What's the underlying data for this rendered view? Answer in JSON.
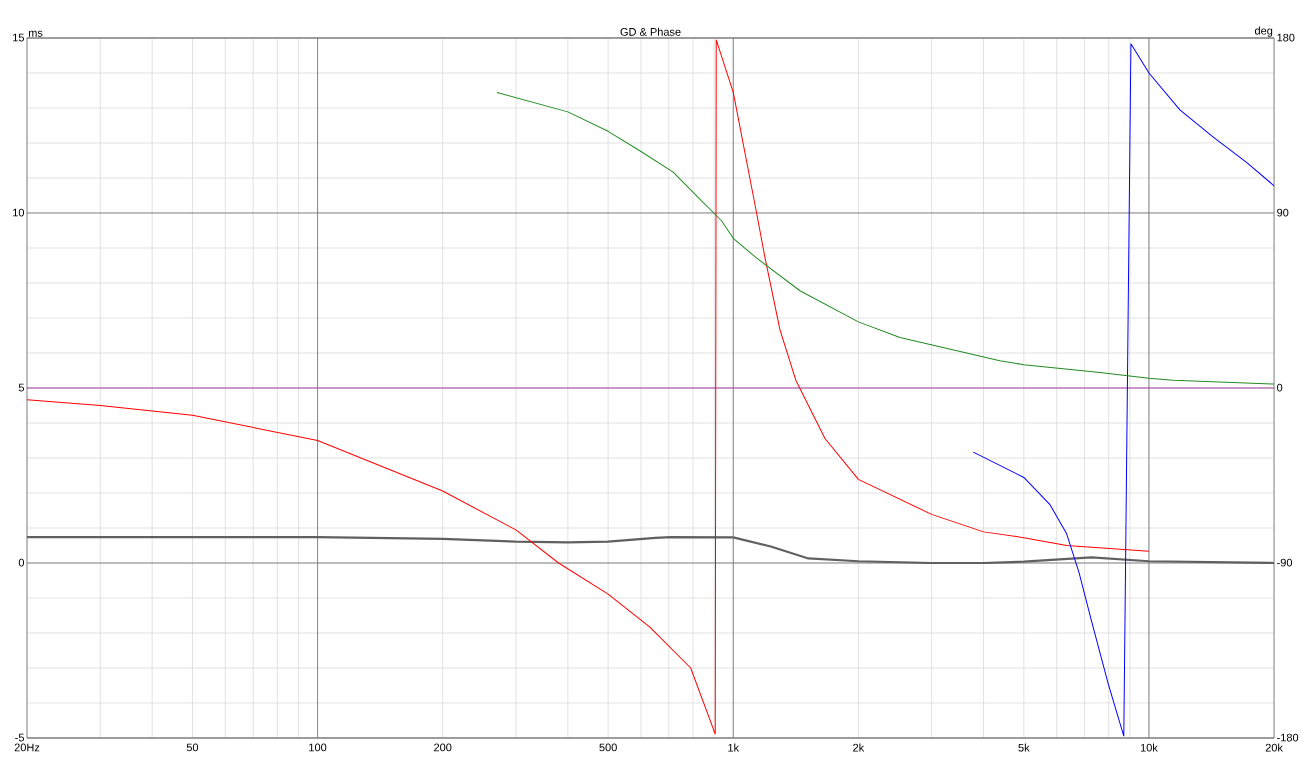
{
  "chart_data": {
    "type": "line",
    "title": "GD & Phase",
    "ylabel": "ms",
    "y2label": "deg",
    "log": "x",
    "grid": true,
    "xlim": [
      20,
      20000
    ],
    "xticks": [
      {
        "value": 20,
        "label": "20Hz"
      },
      {
        "value": 30,
        "label": null
      },
      {
        "value": 40,
        "label": null
      },
      50,
      {
        "value": 60,
        "label": null
      },
      {
        "value": 70,
        "label": null
      },
      {
        "value": 80,
        "label": null
      },
      {
        "value": 90,
        "label": null
      },
      100,
      200,
      {
        "value": 300,
        "label": null
      },
      {
        "value": 400,
        "label": null
      },
      500,
      {
        "value": 600,
        "label": null
      },
      {
        "value": 700,
        "label": null
      },
      {
        "value": 800,
        "label": null
      },
      {
        "value": 900,
        "label": null
      },
      {
        "value": 1000,
        "label": "1k"
      },
      {
        "value": 2000,
        "label": "2k"
      },
      {
        "value": 3000,
        "label": null
      },
      {
        "value": 4000,
        "label": null
      },
      {
        "value": 5000,
        "label": "5k"
      },
      {
        "value": 6000,
        "label": null
      },
      {
        "value": 7000,
        "label": null
      },
      {
        "value": 8000,
        "label": null
      },
      {
        "value": 9000,
        "label": null
      },
      {
        "value": 10000,
        "label": "10k"
      },
      {
        "value": 20000,
        "label": "20k"
      }
    ],
    "ylim": [
      -5,
      15
    ],
    "yticks": [
      -5,
      {
        "value": -4,
        "label": null
      },
      {
        "value": -3,
        "label": null
      },
      {
        "value": -2,
        "label": null
      },
      {
        "value": -1,
        "label": null
      },
      0,
      {
        "value": 1,
        "label": null
      },
      {
        "value": 2,
        "label": null
      },
      {
        "value": 3,
        "label": null
      },
      {
        "value": 4,
        "label": null
      },
      5,
      {
        "value": 6,
        "label": null
      },
      {
        "value": 7,
        "label": null
      },
      {
        "value": 8,
        "label": null
      },
      {
        "value": 9,
        "label": null
      },
      10,
      {
        "value": 11,
        "label": null
      },
      {
        "value": 12,
        "label": null
      },
      {
        "value": 13,
        "label": null
      },
      {
        "value": 14,
        "label": null
      },
      15
    ],
    "y2lim": [
      -180,
      180
    ],
    "y2ticks": [
      -180,
      -90,
      0,
      90,
      180
    ],
    "ref_lines": [
      {
        "axis": "y2",
        "value": 0,
        "color": "#ff00ff"
      }
    ],
    "series": [
      {
        "color": "#ff0000",
        "axis": "y2",
        "x": [
          20,
          30,
          50,
          100,
          200,
          300,
          380,
          500,
          630,
          790,
          905,
          910,
          1000,
          1138,
          1192,
          1295,
          1414,
          1662,
          2000,
          3000,
          4000,
          5000,
          6340,
          10000
        ],
        "values": [
          -6,
          -9,
          -14,
          -27,
          -53,
          -73,
          -90,
          -106,
          -123,
          -144,
          -178,
          179,
          152,
          90,
          67,
          30,
          4,
          -26,
          -47,
          -65,
          -74,
          -77,
          -81,
          -84
        ]
      },
      {
        "color": "#0000ff",
        "axis": "y2",
        "x": [
          3780,
          5000,
          5780,
          6340,
          6790,
          7280,
          7980,
          8700,
          9050,
          10000,
          11870,
          14280,
          17170,
          20000
        ],
        "values": [
          -33,
          -46,
          -60,
          -75,
          -95,
          -120,
          -152,
          -179,
          177,
          162,
          143,
          129,
          116,
          104
        ]
      },
      {
        "color": "#228b22",
        "axis": "y2",
        "x": [
          270,
          400,
          500,
          596,
          717,
          823,
          937,
          1000,
          1135,
          1447,
          2000,
          2518,
          4380,
          5000,
          7620,
          10000,
          11430,
          20000
        ],
        "values": [
          152,
          142,
          132,
          122,
          111,
          98,
          86,
          77,
          67,
          50,
          34,
          26,
          14,
          12,
          8,
          5,
          4,
          2
        ]
      },
      {
        "color": "#606060",
        "axis": "y",
        "x": [
          20,
          100,
          200,
          300,
          400,
          500,
          650,
          707,
          1000,
          1231,
          1516,
          2000,
          3000,
          4000,
          5000,
          7280,
          10000,
          20000
        ],
        "values": [
          0.74,
          0.74,
          0.69,
          0.61,
          0.59,
          0.61,
          0.72,
          0.74,
          0.73,
          0.47,
          0.13,
          0.05,
          0,
          0,
          0.04,
          0.16,
          0.05,
          0
        ]
      }
    ]
  }
}
